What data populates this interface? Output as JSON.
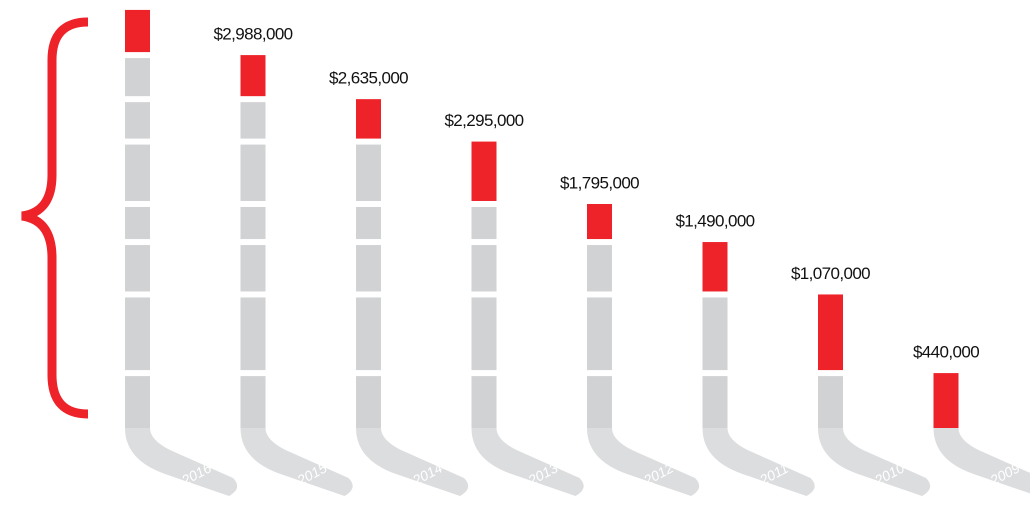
{
  "chart_data": {
    "type": "stick-stack",
    "categories": [
      "2016",
      "2015",
      "2014",
      "2013",
      "2012",
      "2011",
      "2010",
      "2009"
    ],
    "values": [
      3350000,
      2988000,
      2635000,
      2295000,
      1795000,
      1490000,
      1070000,
      440000
    ],
    "value_labels": [
      null,
      "$2,988,000",
      "$2,635,000",
      "$2,295,000",
      "$1,795,000",
      "$1,490,000",
      "$1,070,000",
      "$440,000"
    ],
    "color": "#ee2229",
    "base_color": "#d1d2d4"
  }
}
